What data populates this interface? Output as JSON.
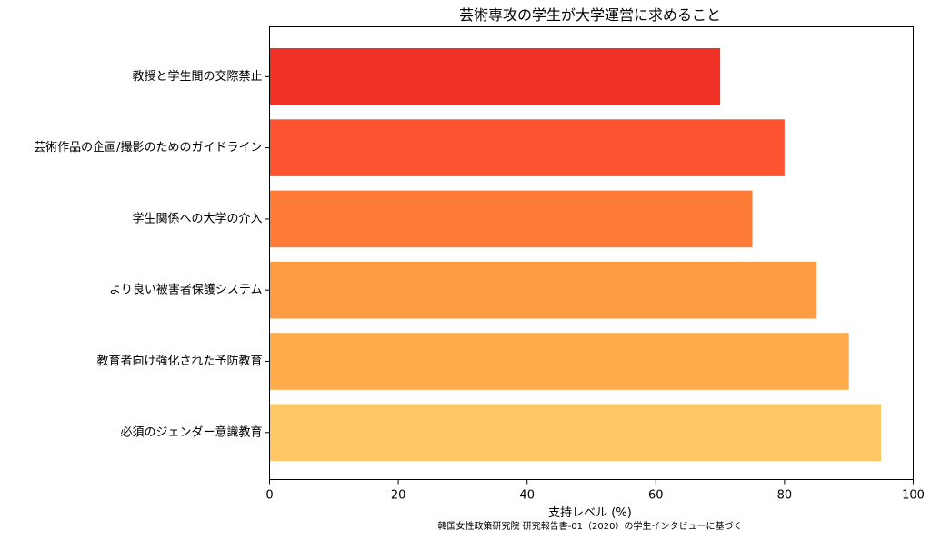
{
  "chart_data": {
    "type": "bar",
    "orientation": "horizontal",
    "title": "芸術専攻の学生が大学運営に求めること",
    "xlabel": "支持レベル (%)",
    "ylabel": "",
    "xlim": [
      0,
      100
    ],
    "xticks": [
      "0",
      "20",
      "40",
      "60",
      "80",
      "100"
    ],
    "grid": false,
    "categories": [
      "必須のジェンダー意識教育",
      "教育者向け強化された予防教育",
      "より良い被害者保護システム",
      "学生関係への大学の介入",
      "芸術作品の企画/撮影のためのガイドライン",
      "教授と学生間の交際禁止"
    ],
    "values": [
      95,
      90,
      85,
      75,
      80,
      70
    ],
    "colors": [
      "#fdc765",
      "#feab4b",
      "#fd9a44",
      "#fd7a37",
      "#fd5330",
      "#ee3025"
    ],
    "source": "韓国女性政策研究院 研究報告書-01（2020）の学生インタビューに基づく"
  }
}
